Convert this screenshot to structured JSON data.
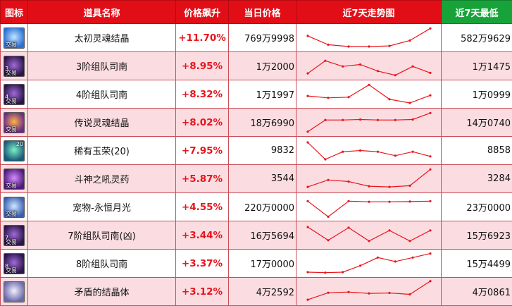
{
  "headers": {
    "icon": "图标",
    "name": "道具名称",
    "rise": "价格飙升",
    "today": "当日价格",
    "trend": "近7天走势图",
    "low": "近7天最低"
  },
  "colors": {
    "header": "#e20e17",
    "header_low": "#18a33a",
    "rise_text": "#e8141c",
    "row_alt": "#fbdde1",
    "trend_line": "#e8141c"
  },
  "rows": [
    {
      "icon": "soul-crystal-icon",
      "icon_tag": "交易",
      "icon_num": "",
      "icon_level": "",
      "name": "太初灵魂结晶",
      "rise": "+11.70%",
      "today": "769万9998",
      "low": "582万9629",
      "trend": [
        0.42,
        0.8,
        0.88,
        0.88,
        0.85,
        0.62,
        0.1
      ]
    },
    {
      "icon": "team-compass-icon",
      "icon_tag": "交易",
      "icon_num": "",
      "icon_level": "3",
      "name": "3阶组队司南",
      "rise": "+8.95%",
      "today": "1万2000",
      "low": "1万1475",
      "trend": [
        0.82,
        0.28,
        0.52,
        0.44,
        0.72,
        0.9,
        0.52,
        0.8
      ]
    },
    {
      "icon": "team-compass-icon",
      "icon_tag": "交易",
      "icon_num": "",
      "icon_level": "4",
      "name": "4阶组队司南",
      "rise": "+8.32%",
      "today": "1万1997",
      "low": "1万0999",
      "trend": [
        0.58,
        0.66,
        0.63,
        0.1,
        0.72,
        0.88,
        0.55
      ]
    },
    {
      "icon": "legend-soul-crystal-icon",
      "icon_tag": "交易",
      "icon_num": "",
      "icon_level": "",
      "name": "传说灵魂结晶",
      "rise": "+8.02%",
      "today": "18万6990",
      "low": "14万0740",
      "trend": [
        0.9,
        0.4,
        0.4,
        0.38,
        0.4,
        0.4,
        0.38,
        0.1
      ]
    },
    {
      "icon": "jade-glory-icon",
      "icon_tag": "",
      "icon_num": "20",
      "icon_level": "",
      "name": "稀有玉荣(20)",
      "rise": "+7.95%",
      "today": "9832",
      "low": "8858",
      "trend": [
        0.15,
        0.88,
        0.55,
        0.5,
        0.55,
        0.72,
        0.55,
        0.75
      ]
    },
    {
      "icon": "war-god-potion-icon",
      "icon_tag": "交易",
      "icon_num": "",
      "icon_level": "",
      "name": "斗神之吼灵药",
      "rise": "+5.87%",
      "today": "3544",
      "low": "3284",
      "trend": [
        0.85,
        0.55,
        0.62,
        0.82,
        0.85,
        0.8,
        0.1
      ]
    },
    {
      "icon": "eternal-moon-pet-icon",
      "icon_tag": "交易",
      "icon_num": "",
      "icon_level": "",
      "name": "宠物-永恒月光",
      "rise": "+4.55%",
      "today": "220万0000",
      "low": "23万0000",
      "trend": [
        0.25,
        0.92,
        0.25,
        0.28,
        0.28,
        0.27,
        0.25
      ]
    },
    {
      "icon": "team-compass-icon",
      "icon_tag": "交易",
      "icon_num": "",
      "icon_level": "7",
      "name": "7阶组队司南(凶)",
      "rise": "+3.44%",
      "today": "16万5694",
      "low": "15万6923",
      "trend": [
        0.15,
        0.72,
        0.18,
        0.75,
        0.3,
        0.75,
        0.3
      ]
    },
    {
      "icon": "team-compass-icon",
      "icon_tag": "交易",
      "icon_num": "",
      "icon_level": "8",
      "name": "8阶组队司南",
      "rise": "+3.37%",
      "today": "17万0000",
      "low": "15万4499",
      "trend": [
        0.88,
        0.9,
        0.88,
        0.6,
        0.25,
        0.42,
        0.25,
        0.08
      ]
    },
    {
      "icon": "contradiction-crystal-icon",
      "icon_tag": "",
      "icon_num": "",
      "icon_level": "",
      "name": "矛盾的结晶体",
      "rise": "+3.12%",
      "today": "4万2592",
      "low": "4万0861",
      "trend": [
        0.85,
        0.55,
        0.52,
        0.58,
        0.56,
        0.62,
        0.05
      ]
    }
  ]
}
